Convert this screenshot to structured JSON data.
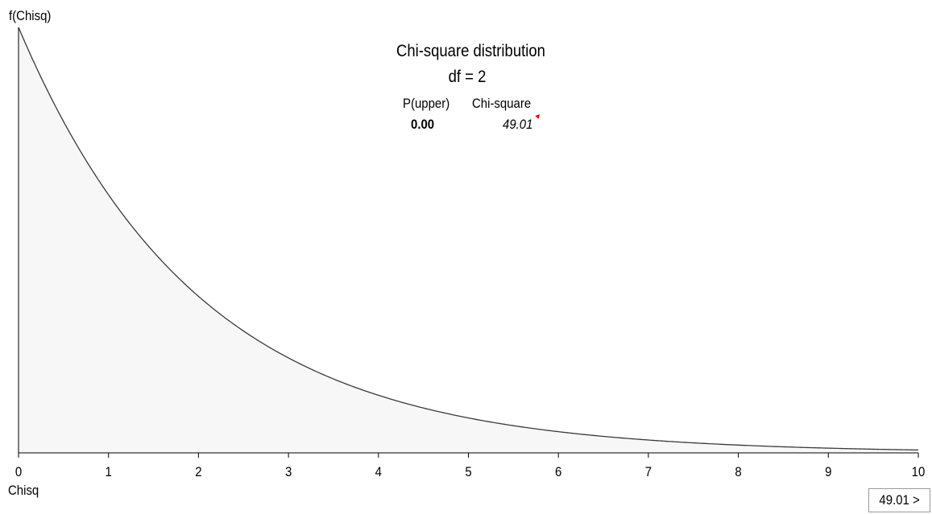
{
  "chart_data": {
    "type": "area",
    "title": "Chi-square distribution",
    "subtitle": "df = 2",
    "df": 2,
    "xlabel": "Chisq",
    "ylabel": "f(Chisq)",
    "xlim": [
      0,
      10
    ],
    "x_ticks": [
      "0",
      "1",
      "2",
      "3",
      "4",
      "5",
      "6",
      "7",
      "8",
      "9",
      "10"
    ],
    "y_ticks_shown": false,
    "grid": false,
    "fill_color": "#f7f7f7",
    "line_color": "#3a3a3a",
    "density": "f(x) = 0.5 * exp(-x/2)",
    "table": {
      "headers": [
        "P(upper)",
        "Chi-square"
      ],
      "values": [
        "0.00",
        "49.01"
      ]
    }
  },
  "controls": {
    "critical_value_button": "49.01 >"
  }
}
